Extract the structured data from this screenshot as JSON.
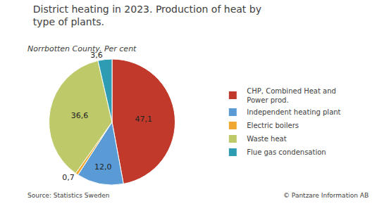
{
  "chart_data": {
    "type": "pie",
    "title": "District heating in 2023. Production of heat by\ntype of plants.",
    "subtitle": "Norrbotten County. Per cent",
    "categories": [
      "CHP, Combined Heat and\nPower prod.",
      "Independent heating plant",
      "Electric boilers",
      "Waste heat",
      "Flue gas condensation"
    ],
    "values": [
      47.1,
      12.0,
      0.7,
      36.6,
      3.6
    ],
    "value_labels": [
      "47,1",
      "12,0",
      "0,7",
      "36,6",
      "3,6"
    ],
    "colors": [
      "#c0392b",
      "#5b9bd5",
      "#f0a830",
      "#bec96a",
      "#2e9db3"
    ],
    "data_labels": true,
    "legend": "right",
    "annotations": [
      "Source: Statistics Sweden",
      "© Pantzare Information AB"
    ]
  }
}
